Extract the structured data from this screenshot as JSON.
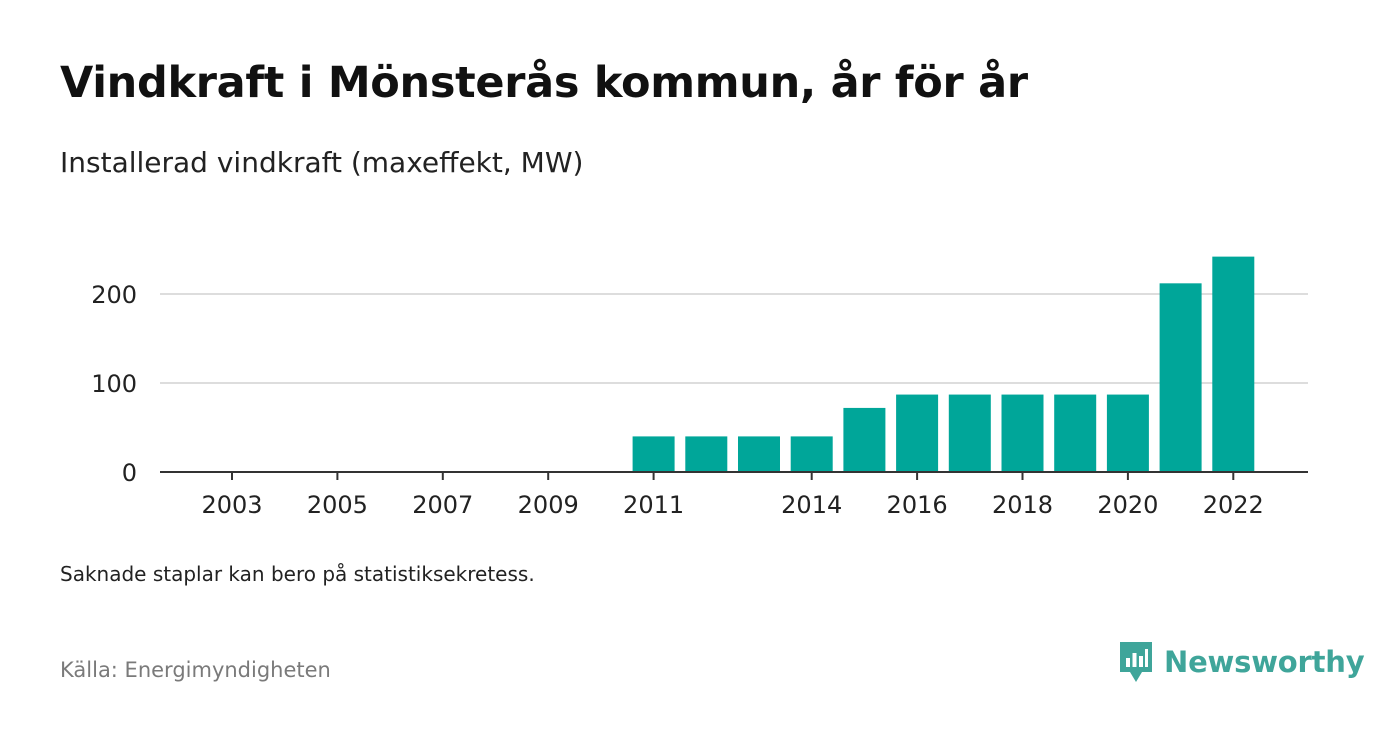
{
  "title": "Vindkraft i Mönsterås kommun, år för år",
  "subtitle": "Installerad vindkraft (maxeffekt, MW)",
  "note": "Saknade staplar kan bero på statistiksekretess.",
  "source": "Källa: Energimyndigheten",
  "brand": {
    "name": "Newsworthy",
    "icon": "newsworthy-logo-icon",
    "color": "#3fa59a"
  },
  "colors": {
    "bar": "#00a699",
    "grid": "#dddddd",
    "axis": "#333333"
  },
  "chart_data": {
    "type": "bar",
    "categories": [
      "2003",
      "2004",
      "2005",
      "2006",
      "2007",
      "2008",
      "2009",
      "2010",
      "2011",
      "2012",
      "2013",
      "2014",
      "2015",
      "2016",
      "2017",
      "2018",
      "2019",
      "2020",
      "2021",
      "2022"
    ],
    "values": [
      0,
      0,
      0,
      0,
      0,
      0,
      0,
      0,
      40,
      40,
      40,
      40,
      72,
      87,
      87,
      87,
      87,
      87,
      212,
      242
    ],
    "x_tick_labels": [
      "2003",
      "2005",
      "2007",
      "2009",
      "2011",
      "2014",
      "2016",
      "2018",
      "2020",
      "2022"
    ],
    "y_ticks": [
      0,
      100,
      200
    ],
    "ylim": [
      0,
      250
    ],
    "title": "Vindkraft i Mönsterås kommun, år för år",
    "subtitle": "Installerad vindkraft (maxeffekt, MW)",
    "grid": true
  }
}
